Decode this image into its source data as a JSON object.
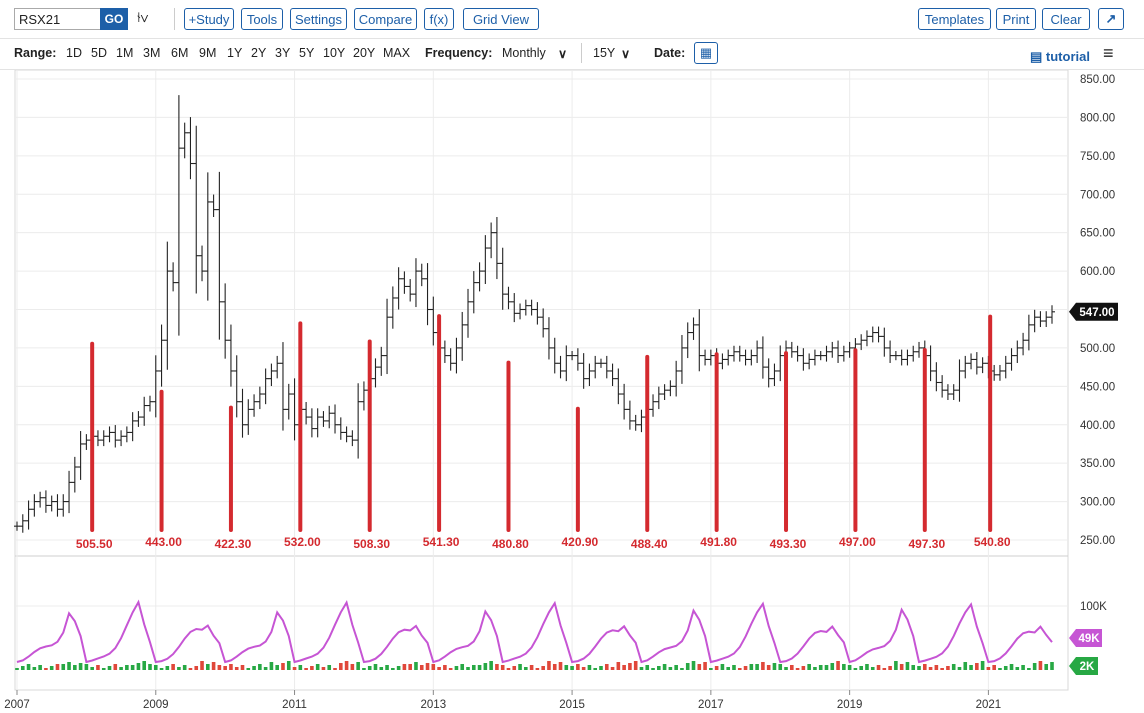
{
  "toolbar": {
    "symbol": "RSX21",
    "go": "GO",
    "buttons": [
      "+Study",
      "Tools",
      "Settings",
      "Compare",
      "f(x)",
      "Grid View"
    ],
    "right_buttons": [
      "Templates",
      "Print",
      "Clear"
    ]
  },
  "rangebar": {
    "range_label": "Range:",
    "ranges": [
      "1D",
      "5D",
      "1M",
      "3M",
      "6M",
      "9M",
      "1Y",
      "2Y",
      "3Y",
      "5Y",
      "10Y",
      "20Y",
      "MAX"
    ],
    "frequency_label": "Frequency:",
    "frequency_value": "Monthly",
    "period_value": "15Y",
    "date_label": "Date:",
    "tutorial": "tutorial"
  },
  "colors": {
    "accent": "#1d5fa8",
    "annotation": "#d42a2f",
    "oi_line": "#c655d4",
    "vol_up": "#27a844",
    "vol_down": "#e0473a"
  },
  "chart_data": {
    "type": "ohlc",
    "frequency": "monthly",
    "price_axis": {
      "min": 250,
      "max": 850,
      "ticks": [
        "850.00",
        "800.00",
        "750.00",
        "700.00",
        "650.00",
        "600.00",
        "550.00",
        "500.00",
        "450.00",
        "400.00",
        "350.00",
        "300.00",
        "250.00"
      ]
    },
    "last_price_label": "547.00",
    "x_labels": [
      "2007",
      "2009",
      "2011",
      "2013",
      "2015",
      "2017",
      "2019",
      "2021"
    ],
    "monthly_closes": [
      268,
      275,
      290,
      300,
      305,
      295,
      300,
      290,
      300,
      325,
      345,
      375,
      380,
      385,
      380,
      385,
      390,
      380,
      385,
      390,
      405,
      410,
      425,
      430,
      470,
      510,
      600,
      585,
      760,
      780,
      740,
      620,
      600,
      690,
      680,
      560,
      510,
      470,
      430,
      400,
      420,
      430,
      440,
      460,
      470,
      480,
      420,
      440,
      400,
      420,
      410,
      395,
      410,
      405,
      415,
      400,
      390,
      385,
      380,
      430,
      445,
      460,
      475,
      490,
      540,
      565,
      590,
      580,
      570,
      600,
      590,
      550,
      520,
      500,
      490,
      480,
      500,
      530,
      560,
      585,
      600,
      630,
      650,
      610,
      570,
      560,
      545,
      550,
      555,
      550,
      540,
      525,
      500,
      480,
      470,
      490,
      490,
      480,
      460,
      470,
      480,
      480,
      470,
      460,
      440,
      420,
      405,
      400,
      410,
      420,
      430,
      440,
      445,
      450,
      470,
      500,
      520,
      530,
      490,
      485,
      490,
      480,
      485,
      490,
      495,
      490,
      485,
      490,
      500,
      475,
      460,
      470,
      490,
      500,
      495,
      490,
      480,
      485,
      490,
      490,
      495,
      500,
      490,
      495,
      500,
      505,
      510,
      515,
      520,
      515,
      500,
      490,
      490,
      485,
      490,
      495,
      500,
      490,
      470,
      455,
      445,
      440,
      445,
      470,
      480,
      485,
      475,
      480,
      470,
      465,
      470,
      480,
      490,
      500,
      510,
      530,
      540,
      535,
      540,
      547
    ],
    "annotations": [
      {
        "date": "2008",
        "value": "505.50"
      },
      {
        "date": "2009",
        "value": "443.00"
      },
      {
        "date": "2010",
        "value": "422.30"
      },
      {
        "date": "2011",
        "value": "532.00"
      },
      {
        "date": "2012",
        "value": "508.30"
      },
      {
        "date": "2013",
        "value": "541.30"
      },
      {
        "date": "2014",
        "value": "480.80"
      },
      {
        "date": "2015",
        "value": "420.90"
      },
      {
        "date": "2016",
        "value": "488.40"
      },
      {
        "date": "2017",
        "value": "491.80"
      },
      {
        "date": "2018",
        "value": "493.30"
      },
      {
        "date": "2019",
        "value": "497.00"
      },
      {
        "date": "2020",
        "value": "497.30"
      },
      {
        "date": "2021",
        "value": "540.80"
      }
    ],
    "lower_panel": {
      "ticks": [
        "100K"
      ],
      "open_interest_label": "49K",
      "volume_label": "2K"
    }
  }
}
